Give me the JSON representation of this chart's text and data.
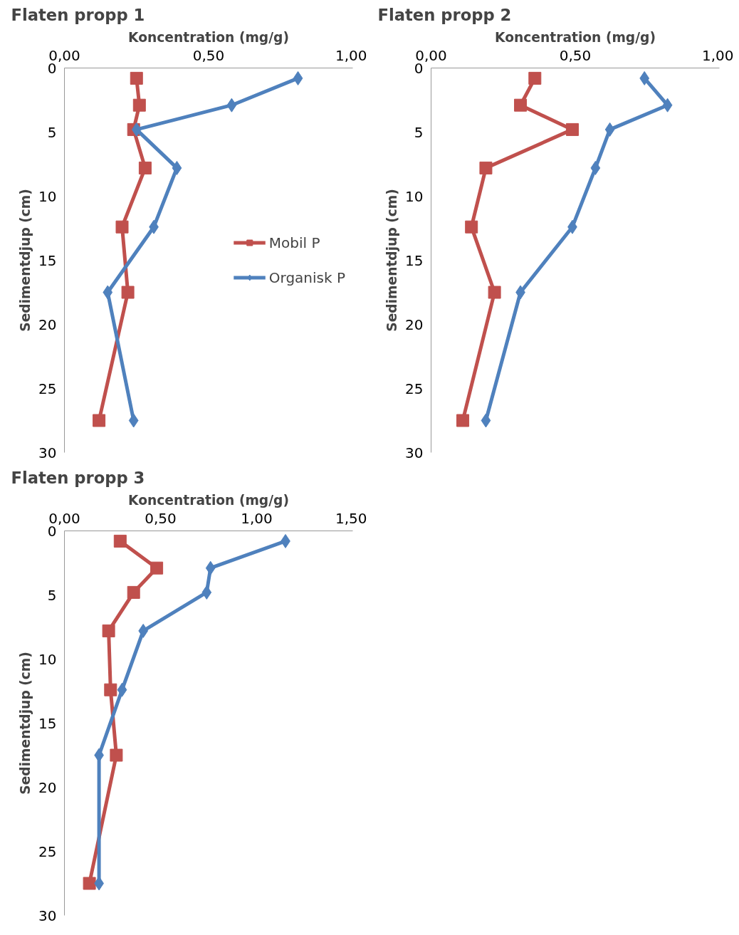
{
  "chart_data": [
    {
      "type": "line",
      "title": "Flaten propp 1",
      "xlabel": "Koncentration (mg/g)",
      "ylabel": "Sedimentdjup (cm)",
      "xlim": [
        0,
        1
      ],
      "xticks": [
        {
          "value": 0,
          "label": "0,00"
        },
        {
          "value": 0.5,
          "label": "0,50"
        },
        {
          "value": 1,
          "label": "1,00"
        }
      ],
      "ylim": [
        30,
        0
      ],
      "yticks": [
        0,
        5,
        10,
        15,
        20,
        25,
        30
      ],
      "grid": false,
      "legend": "right",
      "series": [
        {
          "name": "Mobil P",
          "color": "#c0504d",
          "marker": "square",
          "x": [
            0.25,
            0.26,
            0.24,
            0.28,
            0.2,
            0.22,
            0.12
          ],
          "values": [
            0.8,
            2.9,
            4.8,
            7.8,
            12.4,
            17.5,
            27.5
          ]
        },
        {
          "name": "Organisk P",
          "color": "#4f81bd",
          "marker": "diamond",
          "x": [
            0.81,
            0.58,
            0.25,
            0.39,
            0.31,
            0.15,
            0.24
          ],
          "values": [
            0.8,
            2.9,
            4.8,
            7.8,
            12.4,
            17.5,
            27.5
          ]
        }
      ]
    },
    {
      "type": "line",
      "title": "Flaten propp 2",
      "xlabel": "Koncentration (mg/g)",
      "ylabel": "Sedimentdjup (cm)",
      "xlim": [
        0,
        1
      ],
      "xticks": [
        {
          "value": 0,
          "label": "0,00"
        },
        {
          "value": 0.5,
          "label": "0,50"
        },
        {
          "value": 1,
          "label": "1,00"
        }
      ],
      "ylim": [
        30,
        0
      ],
      "yticks": [
        0,
        5,
        10,
        15,
        20,
        25,
        30
      ],
      "grid": false,
      "series": [
        {
          "color": "#c0504d",
          "marker": "square",
          "x": [
            0.36,
            0.31,
            0.49,
            0.19,
            0.14,
            0.22,
            0.11
          ],
          "values": [
            0.8,
            2.9,
            4.8,
            7.8,
            12.4,
            17.5,
            27.5
          ]
        },
        {
          "color": "#4f81bd",
          "marker": "diamond",
          "x": [
            0.74,
            0.82,
            0.62,
            0.57,
            0.49,
            0.31,
            0.19
          ],
          "values": [
            0.8,
            2.9,
            4.8,
            7.8,
            12.4,
            17.5,
            27.5
          ]
        }
      ]
    },
    {
      "type": "line",
      "title": "Flaten propp 3",
      "xlabel": "Koncentration (mg/g)",
      "ylabel": "Sedimentdjup (cm)",
      "xlim": [
        0,
        1.5
      ],
      "xticks": [
        {
          "value": 0,
          "label": "0,00"
        },
        {
          "value": 0.5,
          "label": "0,50"
        },
        {
          "value": 1,
          "label": "1,00"
        },
        {
          "value": 1.5,
          "label": "1,50"
        }
      ],
      "ylim": [
        30,
        0
      ],
      "yticks": [
        0,
        5,
        10,
        15,
        20,
        25,
        30
      ],
      "grid": false,
      "series": [
        {
          "color": "#c0504d",
          "marker": "square",
          "x": [
            0.29,
            0.48,
            0.36,
            0.23,
            0.24,
            0.27,
            0.13
          ],
          "values": [
            0.8,
            2.9,
            4.8,
            7.8,
            12.4,
            17.5,
            27.5
          ]
        },
        {
          "color": "#4f81bd",
          "marker": "diamond",
          "x": [
            1.15,
            0.76,
            0.74,
            0.41,
            0.3,
            0.18,
            0.18
          ],
          "values": [
            0.8,
            2.9,
            4.8,
            7.8,
            12.4,
            17.5,
            27.5
          ]
        }
      ]
    }
  ]
}
